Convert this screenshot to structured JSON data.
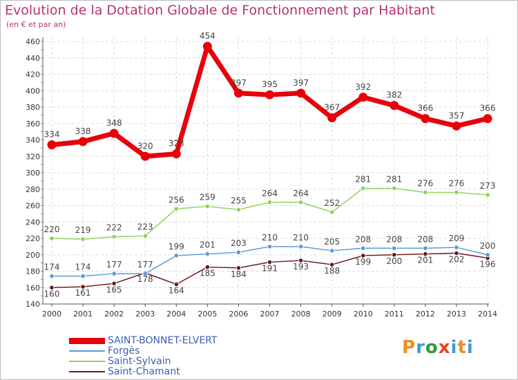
{
  "chart_data": {
    "type": "line",
    "title": "Evolution de la Dotation Globale de Fonctionnement par Habitant",
    "subtitle": "(en € et par an)",
    "x": [
      "2000",
      "2001",
      "2002",
      "2003",
      "2004",
      "2005",
      "2006",
      "2007",
      "2008",
      "2009",
      "2010",
      "2011",
      "2012",
      "2013",
      "2014"
    ],
    "ylim": [
      140,
      460
    ],
    "yticks": [
      140,
      160,
      180,
      200,
      220,
      240,
      260,
      280,
      300,
      320,
      340,
      360,
      380,
      400,
      420,
      440,
      460
    ],
    "grid": true,
    "legend_position": "bottom-left",
    "series": [
      {
        "name": "SAINT-BONNET-ELVERT",
        "color": "#e8000b",
        "values": [
          334,
          338,
          348,
          320,
          323,
          454,
          397,
          395,
          397,
          367,
          392,
          382,
          366,
          357,
          366
        ]
      },
      {
        "name": "Forgès",
        "color": "#5b9bd5",
        "values": [
          174,
          174,
          177,
          177,
          199,
          201,
          203,
          210,
          210,
          205,
          208,
          208,
          208,
          209,
          200
        ]
      },
      {
        "name": "Saint-Sylvain",
        "color": "#8fd15a",
        "values": [
          220,
          219,
          222,
          223,
          256,
          259,
          255,
          264,
          264,
          252,
          281,
          281,
          276,
          276,
          273
        ]
      },
      {
        "name": "Saint-Chamant",
        "color": "#6b1a1a",
        "values": [
          160,
          161,
          165,
          178,
          164,
          185,
          184,
          191,
          193,
          188,
          199,
          200,
          201,
          202,
          196
        ]
      }
    ]
  },
  "logo": {
    "letters": [
      "P",
      "r",
      "o",
      "x",
      "i",
      "t",
      "i"
    ],
    "colors": [
      "#f28c1e",
      "#3b9bd9",
      "#2a9d3c",
      "#e8451c",
      "#3b9bd9",
      "#f28c1e",
      "#3b9bd9"
    ]
  }
}
